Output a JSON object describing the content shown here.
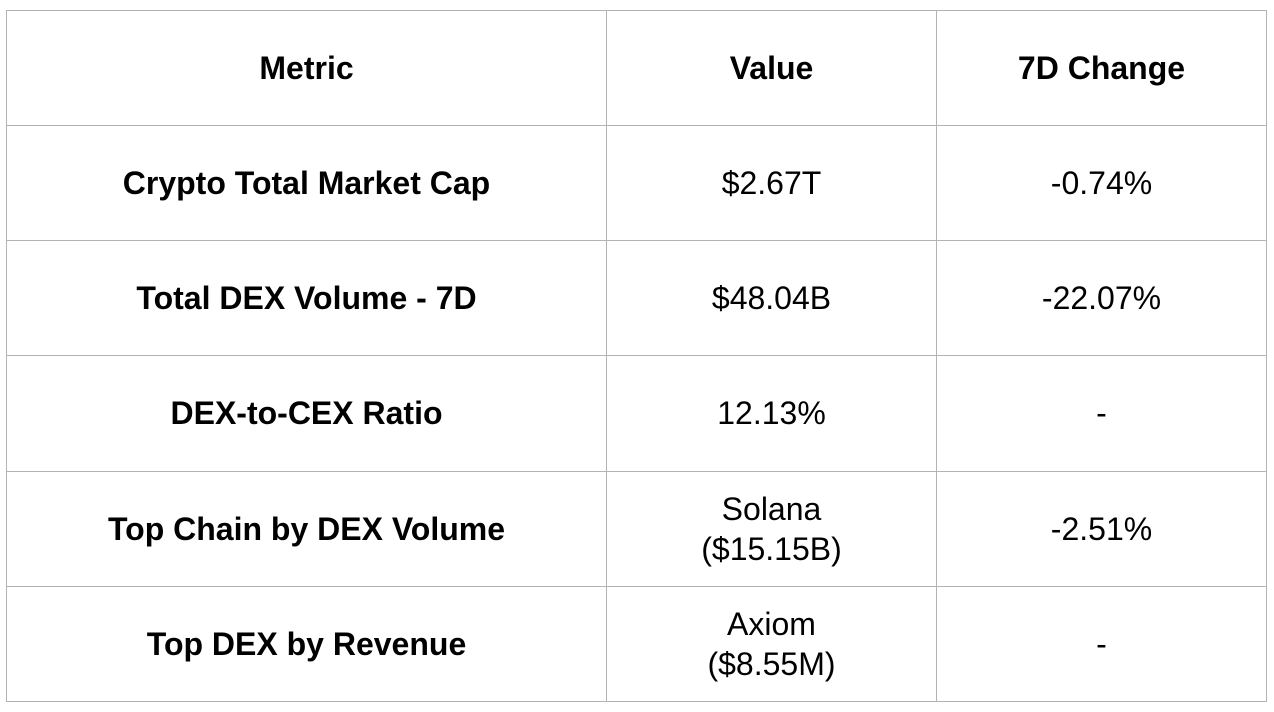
{
  "table": {
    "headers": {
      "metric": "Metric",
      "value": "Value",
      "change": "7D Change"
    },
    "rows": [
      {
        "metric": "Crypto Total Market Cap",
        "value_line1": "$2.67T",
        "value_line2": "",
        "change": "-0.74%"
      },
      {
        "metric": "Total DEX Volume - 7D",
        "value_line1": "$48.04B",
        "value_line2": "",
        "change": "-22.07%"
      },
      {
        "metric": "DEX-to-CEX Ratio",
        "value_line1": "12.13%",
        "value_line2": "",
        "change": "-"
      },
      {
        "metric": "Top Chain by DEX Volume",
        "value_line1": "Solana",
        "value_line2": "($15.15B)",
        "change": "-2.51%"
      },
      {
        "metric": "Top DEX by Revenue",
        "value_line1": "Axiom",
        "value_line2": "($8.55M)",
        "change": "-"
      }
    ]
  },
  "colors": {
    "border": "#b3b3b3",
    "text": "#000000",
    "background": "#ffffff"
  }
}
